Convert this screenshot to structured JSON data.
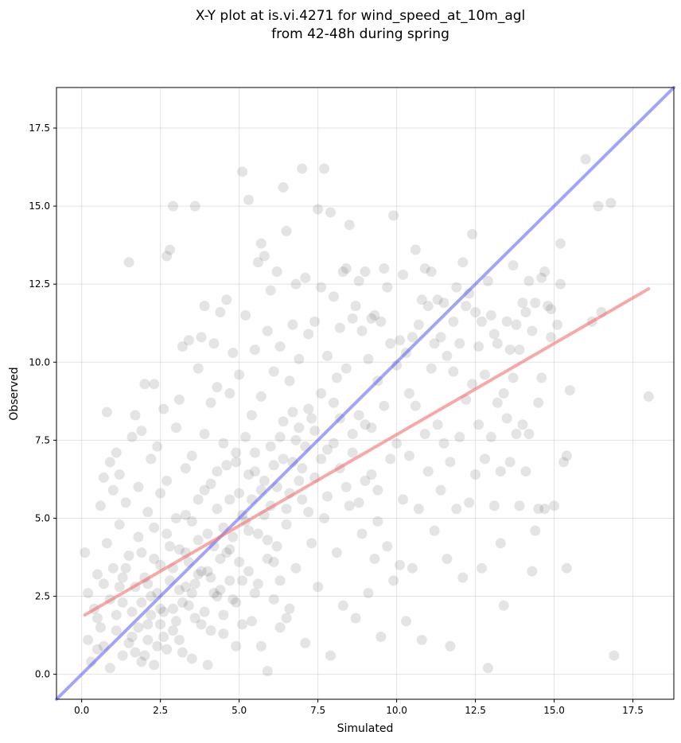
{
  "chart_data": {
    "type": "scatter",
    "title_line1": "X-Y plot at is.vi.4271 for wind_speed_at_10m_agl",
    "title_line2": "from 42-48h during spring",
    "xlabel": "Simulated",
    "ylabel": "Observed",
    "xlim": [
      -0.8,
      18.8
    ],
    "ylim": [
      -0.8,
      18.8
    ],
    "xticks": [
      0.0,
      2.5,
      5.0,
      7.5,
      10.0,
      12.5,
      15.0,
      17.5
    ],
    "yticks": [
      0.0,
      2.5,
      5.0,
      7.5,
      10.0,
      12.5,
      15.0,
      17.5
    ],
    "xtick_labels": [
      "0.0",
      "2.5",
      "5.0",
      "7.5",
      "10.0",
      "12.5",
      "15.0",
      "17.5"
    ],
    "ytick_labels": [
      "0.0",
      "2.5",
      "5.0",
      "7.5",
      "10.0",
      "12.5",
      "15.0",
      "17.5"
    ],
    "grid": true,
    "point_color": "#404040",
    "identity_line": {
      "color": "#5a5af0",
      "from": [
        -0.8,
        -0.8
      ],
      "to": [
        18.8,
        18.8
      ]
    },
    "fit_line": {
      "color": "#f07070",
      "from": [
        0.1,
        1.9
      ],
      "to": [
        18.0,
        12.35
      ]
    },
    "points": [
      [
        0.1,
        3.9
      ],
      [
        0.2,
        2.6
      ],
      [
        0.2,
        1.1
      ],
      [
        0.3,
        0.4
      ],
      [
        0.4,
        2.1
      ],
      [
        0.5,
        3.2
      ],
      [
        0.5,
        0.8
      ],
      [
        0.6,
        5.4
      ],
      [
        0.6,
        1.5
      ],
      [
        0.7,
        6.3
      ],
      [
        0.7,
        2.9
      ],
      [
        0.8,
        8.4
      ],
      [
        0.8,
        4.2
      ],
      [
        0.9,
        6.8
      ],
      [
        0.9,
        0.2
      ],
      [
        1.0,
        5.9
      ],
      [
        1.0,
        3.4
      ],
      [
        1.1,
        7.1
      ],
      [
        1.1,
        1.9
      ],
      [
        1.2,
        4.8
      ],
      [
        1.2,
        6.4
      ],
      [
        1.3,
        2.3
      ],
      [
        1.3,
        0.6
      ],
      [
        1.4,
        5.5
      ],
      [
        1.5,
        13.2
      ],
      [
        1.5,
        3.8
      ],
      [
        1.6,
        7.6
      ],
      [
        1.6,
        1.2
      ],
      [
        1.7,
        8.3
      ],
      [
        1.7,
        2.8
      ],
      [
        1.8,
        6.0
      ],
      [
        1.8,
        4.4
      ],
      [
        1.9,
        7.8
      ],
      [
        1.9,
        0.4
      ],
      [
        2.0,
        9.3
      ],
      [
        2.0,
        3.1
      ],
      [
        2.1,
        5.2
      ],
      [
        2.1,
        1.6
      ],
      [
        2.2,
        6.9
      ],
      [
        2.2,
        2.5
      ],
      [
        2.3,
        9.3
      ],
      [
        2.3,
        4.7
      ],
      [
        2.4,
        7.3
      ],
      [
        2.4,
        0.9
      ],
      [
        2.5,
        5.8
      ],
      [
        2.5,
        3.5
      ],
      [
        2.6,
        8.5
      ],
      [
        2.6,
        2.0
      ],
      [
        2.7,
        6.2
      ],
      [
        2.7,
        13.4
      ],
      [
        2.8,
        13.6
      ],
      [
        2.8,
        4.1
      ],
      [
        2.9,
        15.0
      ],
      [
        2.9,
        1.4
      ],
      [
        3.0,
        7.9
      ],
      [
        3.0,
        5.0
      ],
      [
        3.1,
        2.7
      ],
      [
        3.1,
        8.8
      ],
      [
        3.2,
        10.5
      ],
      [
        3.2,
        0.7
      ],
      [
        3.3,
        6.6
      ],
      [
        3.3,
        3.9
      ],
      [
        3.4,
        10.7
      ],
      [
        3.4,
        2.2
      ],
      [
        3.5,
        7.0
      ],
      [
        3.5,
        4.9
      ],
      [
        3.6,
        15.0
      ],
      [
        3.6,
        1.8
      ],
      [
        3.7,
        9.8
      ],
      [
        3.7,
        5.6
      ],
      [
        3.8,
        10.8
      ],
      [
        3.8,
        3.3
      ],
      [
        3.9,
        11.8
      ],
      [
        3.9,
        7.7
      ],
      [
        4.0,
        4.5
      ],
      [
        4.0,
        0.3
      ],
      [
        4.1,
        8.7
      ],
      [
        4.1,
        6.1
      ],
      [
        4.2,
        10.6
      ],
      [
        4.2,
        2.6
      ],
      [
        4.3,
        9.2
      ],
      [
        4.3,
        5.3
      ],
      [
        4.4,
        11.6
      ],
      [
        4.4,
        3.7
      ],
      [
        4.5,
        7.4
      ],
      [
        4.5,
        1.3
      ],
      [
        4.6,
        12.0
      ],
      [
        4.6,
        6.7
      ],
      [
        4.7,
        9.0
      ],
      [
        4.7,
        4.0
      ],
      [
        4.8,
        10.3
      ],
      [
        4.8,
        2.4
      ],
      [
        4.9,
        7.1
      ],
      [
        4.9,
        0.9
      ],
      [
        5.0,
        9.6
      ],
      [
        5.0,
        5.8
      ],
      [
        5.1,
        16.1
      ],
      [
        5.1,
        3.0
      ],
      [
        5.2,
        11.5
      ],
      [
        5.2,
        7.6
      ],
      [
        5.3,
        15.2
      ],
      [
        5.3,
        4.6
      ],
      [
        5.4,
        8.3
      ],
      [
        5.4,
        1.7
      ],
      [
        5.5,
        10.4
      ],
      [
        5.5,
        6.5
      ],
      [
        5.6,
        13.2
      ],
      [
        5.6,
        2.9
      ],
      [
        5.7,
        13.8
      ],
      [
        5.7,
        8.9
      ],
      [
        5.8,
        13.4
      ],
      [
        5.8,
        5.1
      ],
      [
        5.9,
        11.0
      ],
      [
        5.9,
        0.1
      ],
      [
        6.0,
        12.3
      ],
      [
        6.0,
        7.3
      ],
      [
        6.1,
        9.7
      ],
      [
        6.1,
        3.6
      ],
      [
        6.2,
        12.9
      ],
      [
        6.2,
        6.0
      ],
      [
        6.3,
        10.5
      ],
      [
        6.3,
        1.5
      ],
      [
        6.4,
        15.6
      ],
      [
        6.4,
        8.1
      ],
      [
        6.5,
        14.2
      ],
      [
        6.5,
        4.8
      ],
      [
        6.6,
        9.4
      ],
      [
        6.6,
        2.1
      ],
      [
        6.7,
        11.2
      ],
      [
        6.7,
        6.8
      ],
      [
        6.8,
        12.5
      ],
      [
        6.8,
        3.4
      ],
      [
        6.9,
        10.1
      ],
      [
        6.9,
        7.9
      ],
      [
        7.0,
        16.2
      ],
      [
        7.0,
        5.6
      ],
      [
        7.1,
        12.7
      ],
      [
        7.1,
        1.0
      ],
      [
        7.2,
        10.9
      ],
      [
        7.2,
        8.5
      ],
      [
        7.3,
        8.2
      ],
      [
        7.3,
        4.2
      ],
      [
        7.4,
        11.3
      ],
      [
        7.4,
        6.3
      ],
      [
        7.5,
        14.9
      ],
      [
        7.5,
        2.8
      ],
      [
        7.6,
        12.4
      ],
      [
        7.6,
        9.0
      ],
      [
        7.7,
        16.2
      ],
      [
        7.7,
        5.0
      ],
      [
        7.8,
        10.2
      ],
      [
        7.8,
        7.2
      ],
      [
        7.9,
        14.8
      ],
      [
        7.9,
        0.6
      ],
      [
        8.0,
        12.1
      ],
      [
        8.0,
        8.7
      ],
      [
        8.1,
        9.5
      ],
      [
        8.1,
        3.9
      ],
      [
        8.2,
        11.1
      ],
      [
        8.2,
        6.6
      ],
      [
        8.3,
        12.9
      ],
      [
        8.3,
        2.2
      ],
      [
        8.4,
        13.0
      ],
      [
        8.4,
        9.8
      ],
      [
        8.5,
        14.4
      ],
      [
        8.5,
        5.4
      ],
      [
        8.6,
        11.4
      ],
      [
        8.6,
        7.7
      ],
      [
        8.7,
        11.8
      ],
      [
        8.7,
        1.8
      ],
      [
        8.8,
        12.6
      ],
      [
        8.8,
        8.3
      ],
      [
        8.9,
        11.0
      ],
      [
        8.9,
        4.5
      ],
      [
        9.0,
        12.9
      ],
      [
        9.0,
        6.2
      ],
      [
        9.1,
        10.1
      ],
      [
        9.1,
        2.6
      ],
      [
        9.2,
        11.4
      ],
      [
        9.2,
        7.9
      ],
      [
        9.3,
        11.5
      ],
      [
        9.3,
        3.7
      ],
      [
        9.4,
        9.4
      ],
      [
        9.4,
        5.9
      ],
      [
        9.5,
        11.3
      ],
      [
        9.5,
        1.2
      ],
      [
        9.6,
        13.0
      ],
      [
        9.6,
        8.6
      ],
      [
        9.7,
        12.4
      ],
      [
        9.7,
        4.1
      ],
      [
        9.8,
        10.6
      ],
      [
        9.8,
        6.9
      ],
      [
        9.9,
        14.7
      ],
      [
        9.9,
        3.0
      ],
      [
        10.0,
        9.9
      ],
      [
        10.0,
        7.4
      ],
      [
        10.1,
        10.7
      ],
      [
        10.1,
        3.5
      ],
      [
        10.2,
        12.8
      ],
      [
        10.2,
        5.6
      ],
      [
        10.3,
        10.3
      ],
      [
        10.3,
        1.7
      ],
      [
        10.4,
        9.0
      ],
      [
        10.4,
        7.0
      ],
      [
        10.5,
        10.8
      ],
      [
        10.5,
        3.4
      ],
      [
        10.6,
        13.6
      ],
      [
        10.6,
        8.6
      ],
      [
        10.7,
        11.2
      ],
      [
        10.7,
        5.3
      ],
      [
        10.8,
        12.0
      ],
      [
        10.8,
        1.1
      ],
      [
        10.9,
        13.0
      ],
      [
        10.9,
        7.7
      ],
      [
        11.0,
        11.8
      ],
      [
        11.0,
        6.5
      ],
      [
        11.1,
        12.9
      ],
      [
        11.1,
        9.8
      ],
      [
        11.2,
        10.6
      ],
      [
        11.2,
        4.6
      ],
      [
        11.3,
        12.0
      ],
      [
        11.3,
        8.0
      ],
      [
        11.4,
        10.8
      ],
      [
        11.4,
        5.9
      ],
      [
        11.5,
        11.9
      ],
      [
        11.5,
        7.4
      ],
      [
        11.6,
        10.2
      ],
      [
        11.6,
        3.7
      ],
      [
        11.7,
        6.8
      ],
      [
        11.7,
        0.9
      ],
      [
        11.8,
        11.3
      ],
      [
        11.8,
        9.7
      ],
      [
        11.9,
        12.4
      ],
      [
        11.9,
        5.3
      ],
      [
        12.0,
        10.6
      ],
      [
        12.0,
        7.6
      ],
      [
        12.1,
        13.2
      ],
      [
        12.1,
        3.1
      ],
      [
        12.2,
        11.8
      ],
      [
        12.2,
        8.8
      ],
      [
        12.3,
        12.2
      ],
      [
        12.3,
        5.5
      ],
      [
        12.4,
        14.1
      ],
      [
        12.4,
        9.3
      ],
      [
        12.5,
        11.6
      ],
      [
        12.5,
        6.4
      ],
      [
        12.6,
        10.5
      ],
      [
        12.6,
        8.0
      ],
      [
        12.7,
        11.3
      ],
      [
        12.7,
        3.4
      ],
      [
        12.8,
        9.6
      ],
      [
        12.8,
        6.9
      ],
      [
        12.9,
        12.6
      ],
      [
        12.9,
        0.2
      ],
      [
        13.0,
        11.5
      ],
      [
        13.0,
        7.6
      ],
      [
        13.1,
        10.9
      ],
      [
        13.1,
        5.4
      ],
      [
        13.2,
        10.6
      ],
      [
        13.2,
        8.7
      ],
      [
        13.3,
        4.2
      ],
      [
        13.3,
        6.5
      ],
      [
        13.4,
        9.0
      ],
      [
        13.4,
        2.2
      ],
      [
        13.5,
        11.3
      ],
      [
        13.5,
        8.2
      ],
      [
        13.6,
        10.4
      ],
      [
        13.6,
        6.8
      ],
      [
        13.7,
        13.1
      ],
      [
        13.7,
        9.5
      ],
      [
        13.8,
        11.2
      ],
      [
        13.8,
        7.7
      ],
      [
        13.9,
        10.4
      ],
      [
        13.9,
        5.4
      ],
      [
        14.0,
        11.9
      ],
      [
        14.0,
        8.0
      ],
      [
        14.1,
        11.6
      ],
      [
        14.1,
        6.5
      ],
      [
        14.2,
        12.6
      ],
      [
        14.2,
        7.7
      ],
      [
        14.3,
        11.0
      ],
      [
        14.3,
        3.3
      ],
      [
        14.4,
        11.9
      ],
      [
        14.4,
        4.6
      ],
      [
        14.5,
        8.7
      ],
      [
        14.5,
        5.3
      ],
      [
        14.6,
        12.7
      ],
      [
        14.6,
        9.5
      ],
      [
        14.7,
        12.9
      ],
      [
        14.7,
        5.3
      ],
      [
        14.8,
        11.8
      ],
      [
        14.9,
        11.7
      ],
      [
        14.9,
        10.8
      ],
      [
        15.0,
        5.4
      ],
      [
        15.1,
        11.2
      ],
      [
        15.2,
        13.8
      ],
      [
        15.2,
        12.5
      ],
      [
        15.3,
        6.8
      ],
      [
        15.4,
        7.0
      ],
      [
        15.4,
        3.4
      ],
      [
        15.5,
        9.1
      ],
      [
        16.0,
        16.5
      ],
      [
        16.2,
        11.3
      ],
      [
        16.4,
        15.0
      ],
      [
        16.5,
        11.6
      ],
      [
        16.8,
        15.1
      ],
      [
        16.9,
        0.6
      ],
      [
        18.0,
        8.9
      ],
      [
        1.5,
        1.0
      ],
      [
        1.8,
        1.5
      ],
      [
        2.0,
        0.6
      ],
      [
        2.2,
        1.9
      ],
      [
        2.4,
        2.6
      ],
      [
        2.6,
        1.2
      ],
      [
        2.8,
        3.0
      ],
      [
        3.0,
        1.7
      ],
      [
        3.2,
        2.3
      ],
      [
        3.4,
        3.6
      ],
      [
        3.6,
        2.9
      ],
      [
        3.8,
        1.6
      ],
      [
        4.0,
        3.3
      ],
      [
        4.2,
        4.1
      ],
      [
        4.4,
        2.7
      ],
      [
        4.6,
        3.9
      ],
      [
        4.8,
        4.4
      ],
      [
        5.0,
        3.6
      ],
      [
        5.2,
        4.9
      ],
      [
        5.4,
        5.6
      ],
      [
        5.6,
        4.5
      ],
      [
        5.8,
        6.2
      ],
      [
        6.0,
        5.4
      ],
      [
        6.2,
        4.1
      ],
      [
        6.4,
        6.9
      ],
      [
        6.6,
        5.8
      ],
      [
        6.8,
        7.5
      ],
      [
        7.0,
        6.6
      ],
      [
        7.2,
        5.2
      ],
      [
        7.4,
        7.8
      ],
      [
        7.6,
        6.9
      ],
      [
        7.8,
        5.7
      ],
      [
        8.0,
        7.4
      ],
      [
        8.2,
        8.2
      ],
      [
        8.4,
        6.0
      ],
      [
        8.6,
        7.1
      ],
      [
        8.8,
        5.5
      ],
      [
        9.0,
        8.0
      ],
      [
        9.2,
        6.4
      ],
      [
        9.4,
        4.9
      ],
      [
        1.2,
        2.8
      ],
      [
        1.4,
        3.4
      ],
      [
        1.6,
        2.0
      ],
      [
        1.9,
        3.9
      ],
      [
        2.1,
        2.9
      ],
      [
        2.3,
        3.7
      ],
      [
        2.5,
        1.6
      ],
      [
        2.7,
        4.5
      ],
      [
        2.9,
        2.1
      ],
      [
        3.1,
        4.0
      ],
      [
        3.3,
        5.1
      ],
      [
        3.5,
        2.6
      ],
      [
        3.7,
        4.3
      ],
      [
        3.9,
        5.9
      ],
      [
        4.1,
        3.1
      ],
      [
        4.3,
        6.5
      ],
      [
        4.5,
        4.7
      ],
      [
        4.7,
        5.6
      ],
      [
        4.9,
        6.8
      ],
      [
        5.1,
        5.1
      ],
      [
        5.3,
        6.4
      ],
      [
        5.5,
        7.1
      ],
      [
        5.7,
        5.9
      ],
      [
        5.9,
        4.3
      ],
      [
        6.1,
        6.7
      ],
      [
        6.3,
        7.6
      ],
      [
        6.5,
        5.3
      ],
      [
        6.7,
        8.4
      ],
      [
        6.9,
        6.2
      ],
      [
        7.1,
        7.3
      ],
      [
        0.5,
        1.8
      ],
      [
        0.7,
        0.9
      ],
      [
        0.9,
        2.4
      ],
      [
        1.1,
        1.4
      ],
      [
        1.3,
        3.1
      ],
      [
        1.7,
        0.7
      ],
      [
        1.9,
        2.3
      ],
      [
        2.1,
        1.1
      ],
      [
        2.3,
        0.3
      ],
      [
        2.5,
        2.1
      ],
      [
        2.7,
        0.8
      ],
      [
        2.9,
        3.4
      ],
      [
        3.1,
        1.1
      ],
      [
        3.3,
        2.8
      ],
      [
        3.5,
        0.5
      ],
      [
        3.7,
        3.2
      ],
      [
        3.9,
        2.0
      ],
      [
        4.1,
        1.4
      ],
      [
        4.3,
        2.5
      ],
      [
        4.5,
        1.9
      ],
      [
        4.7,
        3.0
      ],
      [
        4.9,
        2.3
      ],
      [
        5.1,
        1.6
      ],
      [
        5.3,
        3.3
      ],
      [
        5.5,
        2.6
      ],
      [
        5.7,
        0.9
      ],
      [
        5.9,
        3.7
      ],
      [
        6.1,
        2.4
      ],
      [
        6.3,
        3.0
      ],
      [
        6.5,
        1.8
      ]
    ]
  }
}
